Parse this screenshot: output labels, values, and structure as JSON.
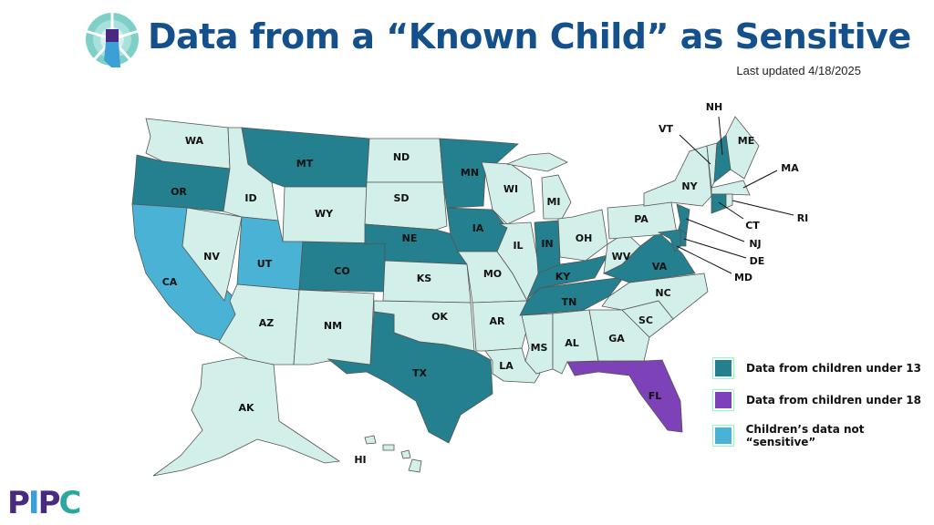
{
  "header": {
    "title": "Data from a “Known Child” as Sensitive",
    "last_updated": "Last updated 4/18/2025",
    "logo": "lighthouse-logo"
  },
  "colors": {
    "under13": "#247f8f",
    "under18": "#7d42b8",
    "not_sensitive": "#4ab3d5",
    "none": "#d3efe9",
    "title": "#13508c"
  },
  "legend": [
    {
      "key": "under13",
      "label": "Data from children under 13"
    },
    {
      "key": "under18",
      "label": "Data from children under 18"
    },
    {
      "key": "not_sensitive",
      "label": "Children’s data not “sensitive”"
    }
  ],
  "states": {
    "WA": "none",
    "OR": "under13",
    "CA": "not_sensitive",
    "NV": "none",
    "ID": "none",
    "MT": "under13",
    "WY": "none",
    "UT": "not_sensitive",
    "AZ": "none",
    "CO": "under13",
    "NM": "none",
    "ND": "none",
    "SD": "none",
    "NE": "under13",
    "KS": "none",
    "OK": "none",
    "TX": "under13",
    "MN": "under13",
    "IA": "under13",
    "MO": "none",
    "AR": "none",
    "LA": "none",
    "WI": "none",
    "IL": "none",
    "MI": "none",
    "IN": "under13",
    "OH": "none",
    "KY": "under13",
    "TN": "under13",
    "MS": "none",
    "AL": "none",
    "GA": "none",
    "FL": "under18",
    "SC": "none",
    "NC": "none",
    "VA": "under13",
    "WV": "none",
    "PA": "none",
    "NY": "none",
    "VT": "none",
    "NH": "under13",
    "ME": "none",
    "MA": "none",
    "CT": "under13",
    "RI": "none",
    "NJ": "under13",
    "DE": "under13",
    "MD": "under13",
    "AK": "none",
    "HI": "none"
  },
  "footer": {
    "logo_text": "PIPC"
  }
}
